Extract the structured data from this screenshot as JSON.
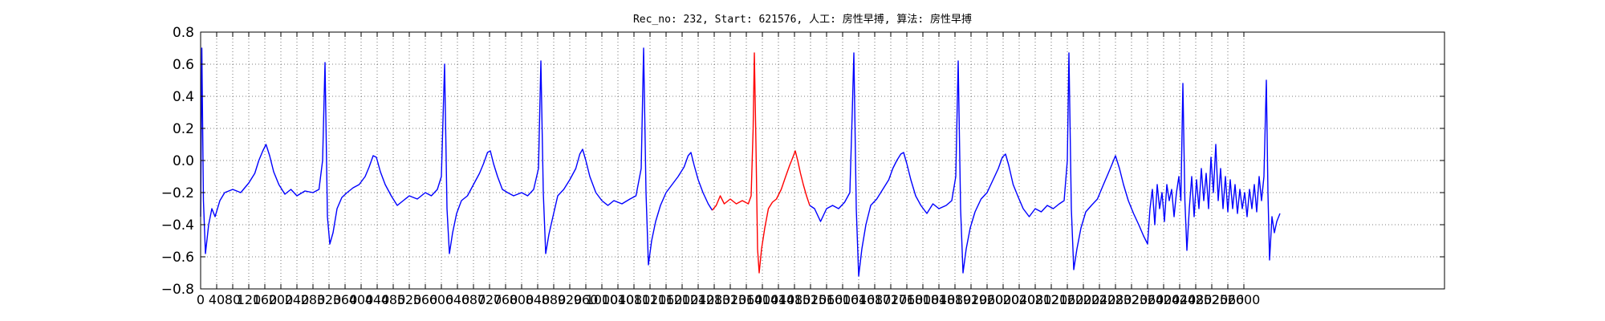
{
  "chart_data": {
    "type": "line",
    "title": "Rec_no: 232, Start: 621576, 人工: 房性早搏, 算法: 房性早搏",
    "xlabel": "",
    "ylabel": "",
    "xlim": [
      0,
      3100
    ],
    "ylim": [
      -0.8,
      0.8
    ],
    "grid": true,
    "y_ticks": [
      -0.8,
      -0.6,
      -0.4,
      -0.2,
      0.0,
      0.2,
      0.4,
      0.6,
      0.8
    ],
    "y_tick_labels": [
      "−0.8",
      "−0.6",
      "−0.4",
      "−0.2",
      "0.0",
      "0.2",
      "0.4",
      "0.6",
      "0.8"
    ],
    "x_ticks": [
      0,
      40,
      80,
      120,
      160,
      200,
      240,
      280,
      320,
      360,
      400,
      440,
      480,
      520,
      560,
      600,
      640,
      680,
      720,
      760,
      800,
      840,
      880,
      920,
      960,
      1000,
      1040,
      1080,
      1120,
      1160,
      1200,
      1240,
      1280,
      1320,
      1360,
      1400,
      1440,
      1480,
      1520,
      1560,
      1600,
      1640,
      1680,
      1720,
      1760,
      1800,
      1840,
      1880,
      1920,
      1960,
      2000,
      2040,
      2080,
      2120,
      2160,
      2200,
      2240,
      2280,
      2320,
      2360,
      2400,
      2440,
      2480,
      2520,
      2560,
      2600
    ],
    "x_tick_labels": [
      "0",
      "40",
      "80",
      "120",
      "160",
      "200",
      "240",
      "280",
      "320",
      "360",
      "400",
      "440",
      "480",
      "520",
      "560",
      "600",
      "640",
      "680",
      "720",
      "760",
      "800",
      "840",
      "880",
      "920",
      "960",
      "1000",
      "1040",
      "1080",
      "1120",
      "1160",
      "1200",
      "1240",
      "1280",
      "1320",
      "1360",
      "1400",
      "1440",
      "1480",
      "1520",
      "1560",
      "1600",
      "1640",
      "1680",
      "1720",
      "1760",
      "1800",
      "1840",
      "1880",
      "1920",
      "1960",
      "2000",
      "2040",
      "2080",
      "2120",
      "2160",
      "2200",
      "2240",
      "2280",
      "2320",
      "2360",
      "2400",
      "2440",
      "2480",
      "2520",
      "2560",
      "2600"
    ],
    "series": [
      {
        "color": "#0000ff",
        "points": [
          [
            0,
            -0.35
          ],
          [
            3,
            0.7
          ],
          [
            7,
            -0.25
          ],
          [
            12,
            -0.58
          ],
          [
            20,
            -0.4
          ],
          [
            28,
            -0.3
          ],
          [
            36,
            -0.35
          ],
          [
            48,
            -0.25
          ],
          [
            60,
            -0.2
          ],
          [
            80,
            -0.18
          ],
          [
            100,
            -0.2
          ],
          [
            120,
            -0.14
          ],
          [
            135,
            -0.08
          ],
          [
            145,
            0.0
          ],
          [
            155,
            0.06
          ],
          [
            163,
            0.1
          ],
          [
            172,
            0.03
          ],
          [
            182,
            -0.07
          ],
          [
            195,
            -0.15
          ],
          [
            210,
            -0.21
          ],
          [
            225,
            -0.18
          ],
          [
            240,
            -0.22
          ],
          [
            260,
            -0.19
          ],
          [
            280,
            -0.2
          ],
          [
            295,
            -0.18
          ],
          [
            304,
            0.0
          ],
          [
            310,
            0.61
          ],
          [
            316,
            -0.35
          ],
          [
            322,
            -0.52
          ],
          [
            330,
            -0.45
          ],
          [
            340,
            -0.3
          ],
          [
            352,
            -0.23
          ],
          [
            365,
            -0.2
          ],
          [
            380,
            -0.17
          ],
          [
            395,
            -0.15
          ],
          [
            410,
            -0.1
          ],
          [
            420,
            -0.04
          ],
          [
            430,
            0.03
          ],
          [
            438,
            0.02
          ],
          [
            448,
            -0.07
          ],
          [
            460,
            -0.15
          ],
          [
            475,
            -0.22
          ],
          [
            490,
            -0.28
          ],
          [
            505,
            -0.25
          ],
          [
            520,
            -0.22
          ],
          [
            540,
            -0.24
          ],
          [
            560,
            -0.2
          ],
          [
            575,
            -0.22
          ],
          [
            590,
            -0.18
          ],
          [
            600,
            -0.1
          ],
          [
            608,
            0.6
          ],
          [
            614,
            -0.3
          ],
          [
            620,
            -0.58
          ],
          [
            628,
            -0.45
          ],
          [
            638,
            -0.33
          ],
          [
            650,
            -0.25
          ],
          [
            665,
            -0.22
          ],
          [
            680,
            -0.15
          ],
          [
            695,
            -0.08
          ],
          [
            705,
            -0.02
          ],
          [
            715,
            0.05
          ],
          [
            722,
            0.06
          ],
          [
            730,
            -0.02
          ],
          [
            740,
            -0.1
          ],
          [
            752,
            -0.18
          ],
          [
            765,
            -0.2
          ],
          [
            780,
            -0.22
          ],
          [
            800,
            -0.2
          ],
          [
            815,
            -0.22
          ],
          [
            830,
            -0.18
          ],
          [
            842,
            -0.05
          ],
          [
            848,
            0.62
          ],
          [
            854,
            -0.2
          ],
          [
            860,
            -0.58
          ],
          [
            868,
            -0.46
          ],
          [
            878,
            -0.35
          ],
          [
            890,
            -0.22
          ],
          [
            905,
            -0.18
          ],
          [
            920,
            -0.12
          ],
          [
            935,
            -0.05
          ],
          [
            945,
            0.04
          ],
          [
            952,
            0.07
          ],
          [
            960,
            0.0
          ],
          [
            970,
            -0.1
          ],
          [
            985,
            -0.2
          ],
          [
            1000,
            -0.25
          ],
          [
            1015,
            -0.28
          ],
          [
            1030,
            -0.25
          ],
          [
            1050,
            -0.27
          ],
          [
            1070,
            -0.24
          ],
          [
            1085,
            -0.22
          ],
          [
            1098,
            -0.05
          ],
          [
            1104,
            0.7
          ],
          [
            1110,
            -0.2
          ],
          [
            1116,
            -0.65
          ],
          [
            1124,
            -0.5
          ],
          [
            1134,
            -0.38
          ],
          [
            1146,
            -0.28
          ],
          [
            1160,
            -0.2
          ],
          [
            1175,
            -0.15
          ],
          [
            1190,
            -0.1
          ],
          [
            1205,
            -0.04
          ],
          [
            1215,
            0.03
          ],
          [
            1222,
            0.05
          ],
          [
            1230,
            -0.03
          ],
          [
            1240,
            -0.12
          ],
          [
            1252,
            -0.2
          ],
          [
            1265,
            -0.27
          ],
          [
            1275,
            -0.31
          ]
        ]
      },
      {
        "color": "#ff0000",
        "points": [
          [
            1275,
            -0.31
          ],
          [
            1285,
            -0.28
          ],
          [
            1295,
            -0.22
          ],
          [
            1305,
            -0.27
          ],
          [
            1320,
            -0.24
          ],
          [
            1335,
            -0.27
          ],
          [
            1350,
            -0.25
          ],
          [
            1365,
            -0.27
          ],
          [
            1372,
            -0.22
          ],
          [
            1377,
            0.2
          ],
          [
            1380,
            0.67
          ],
          [
            1384,
            0.1
          ],
          [
            1388,
            -0.55
          ],
          [
            1392,
            -0.7
          ],
          [
            1398,
            -0.55
          ],
          [
            1406,
            -0.42
          ],
          [
            1415,
            -0.3
          ],
          [
            1425,
            -0.26
          ],
          [
            1435,
            -0.24
          ],
          [
            1447,
            -0.18
          ],
          [
            1458,
            -0.1
          ],
          [
            1468,
            -0.03
          ],
          [
            1476,
            0.02
          ],
          [
            1482,
            0.06
          ],
          [
            1488,
            0.0
          ],
          [
            1495,
            -0.08
          ],
          [
            1502,
            -0.15
          ],
          [
            1510,
            -0.22
          ],
          [
            1518,
            -0.28
          ]
        ]
      },
      {
        "color": "#0000ff",
        "points": [
          [
            1518,
            -0.28
          ],
          [
            1530,
            -0.3
          ],
          [
            1545,
            -0.38
          ],
          [
            1560,
            -0.3
          ],
          [
            1575,
            -0.28
          ],
          [
            1590,
            -0.3
          ],
          [
            1605,
            -0.26
          ],
          [
            1618,
            -0.2
          ],
          [
            1624,
            0.3
          ],
          [
            1628,
            0.67
          ],
          [
            1634,
            -0.3
          ],
          [
            1640,
            -0.72
          ],
          [
            1648,
            -0.55
          ],
          [
            1658,
            -0.4
          ],
          [
            1670,
            -0.28
          ],
          [
            1685,
            -0.24
          ],
          [
            1700,
            -0.18
          ],
          [
            1715,
            -0.12
          ],
          [
            1725,
            -0.05
          ],
          [
            1735,
            0.0
          ],
          [
            1745,
            0.04
          ],
          [
            1752,
            0.05
          ],
          [
            1760,
            -0.02
          ],
          [
            1770,
            -0.12
          ],
          [
            1782,
            -0.22
          ],
          [
            1795,
            -0.28
          ],
          [
            1810,
            -0.33
          ],
          [
            1825,
            -0.27
          ],
          [
            1840,
            -0.3
          ],
          [
            1858,
            -0.28
          ],
          [
            1872,
            -0.25
          ],
          [
            1882,
            -0.1
          ],
          [
            1888,
            0.62
          ],
          [
            1894,
            -0.3
          ],
          [
            1900,
            -0.7
          ],
          [
            1908,
            -0.55
          ],
          [
            1918,
            -0.42
          ],
          [
            1930,
            -0.32
          ],
          [
            1945,
            -0.24
          ],
          [
            1960,
            -0.2
          ],
          [
            1975,
            -0.12
          ],
          [
            1988,
            -0.05
          ],
          [
            1998,
            0.02
          ],
          [
            2006,
            0.04
          ],
          [
            2014,
            -0.03
          ],
          [
            2025,
            -0.15
          ],
          [
            2038,
            -0.23
          ],
          [
            2050,
            -0.3
          ],
          [
            2065,
            -0.35
          ],
          [
            2080,
            -0.3
          ],
          [
            2095,
            -0.32
          ],
          [
            2110,
            -0.28
          ],
          [
            2125,
            -0.3
          ],
          [
            2140,
            -0.27
          ],
          [
            2152,
            -0.25
          ],
          [
            2160,
            0.0
          ],
          [
            2164,
            0.67
          ],
          [
            2170,
            -0.3
          ],
          [
            2176,
            -0.68
          ],
          [
            2184,
            -0.55
          ],
          [
            2194,
            -0.42
          ],
          [
            2206,
            -0.32
          ],
          [
            2220,
            -0.28
          ],
          [
            2235,
            -0.24
          ],
          [
            2250,
            -0.15
          ],
          [
            2262,
            -0.08
          ],
          [
            2272,
            -0.02
          ],
          [
            2280,
            0.03
          ],
          [
            2290,
            -0.05
          ],
          [
            2300,
            -0.15
          ],
          [
            2312,
            -0.25
          ],
          [
            2325,
            -0.33
          ],
          [
            2338,
            -0.4
          ],
          [
            2350,
            -0.47
          ],
          [
            2360,
            -0.52
          ],
          [
            2366,
            -0.3
          ],
          [
            2372,
            -0.18
          ],
          [
            2378,
            -0.4
          ],
          [
            2384,
            -0.15
          ],
          [
            2390,
            -0.3
          ],
          [
            2396,
            -0.2
          ],
          [
            2402,
            -0.38
          ],
          [
            2408,
            -0.15
          ],
          [
            2414,
            -0.25
          ],
          [
            2420,
            -0.18
          ],
          [
            2426,
            -0.35
          ],
          [
            2432,
            -0.2
          ],
          [
            2438,
            -0.1
          ],
          [
            2443,
            -0.25
          ],
          [
            2448,
            0.48
          ],
          [
            2453,
            -0.25
          ],
          [
            2458,
            -0.56
          ],
          [
            2464,
            -0.3
          ],
          [
            2470,
            -0.1
          ],
          [
            2476,
            -0.35
          ],
          [
            2482,
            -0.12
          ],
          [
            2488,
            -0.3
          ],
          [
            2494,
            -0.05
          ],
          [
            2500,
            -0.25
          ],
          [
            2506,
            -0.08
          ],
          [
            2512,
            -0.3
          ],
          [
            2518,
            0.02
          ],
          [
            2524,
            -0.2
          ],
          [
            2530,
            0.1
          ],
          [
            2536,
            -0.25
          ],
          [
            2542,
            -0.05
          ],
          [
            2548,
            -0.3
          ],
          [
            2554,
            -0.1
          ],
          [
            2560,
            -0.32
          ],
          [
            2566,
            -0.12
          ],
          [
            2572,
            -0.3
          ],
          [
            2578,
            -0.15
          ],
          [
            2584,
            -0.33
          ],
          [
            2590,
            -0.18
          ],
          [
            2596,
            -0.3
          ],
          [
            2602,
            -0.2
          ],
          [
            2608,
            -0.35
          ],
          [
            2614,
            -0.18
          ],
          [
            2620,
            -0.3
          ],
          [
            2626,
            -0.15
          ],
          [
            2632,
            -0.32
          ],
          [
            2638,
            -0.1
          ],
          [
            2644,
            -0.25
          ],
          [
            2650,
            -0.1
          ],
          [
            2656,
            0.5
          ],
          [
            2660,
            -0.2
          ],
          [
            2664,
            -0.62
          ],
          [
            2670,
            -0.35
          ],
          [
            2676,
            -0.45
          ],
          [
            2682,
            -0.38
          ],
          [
            2690,
            -0.33
          ]
        ]
      }
    ]
  }
}
